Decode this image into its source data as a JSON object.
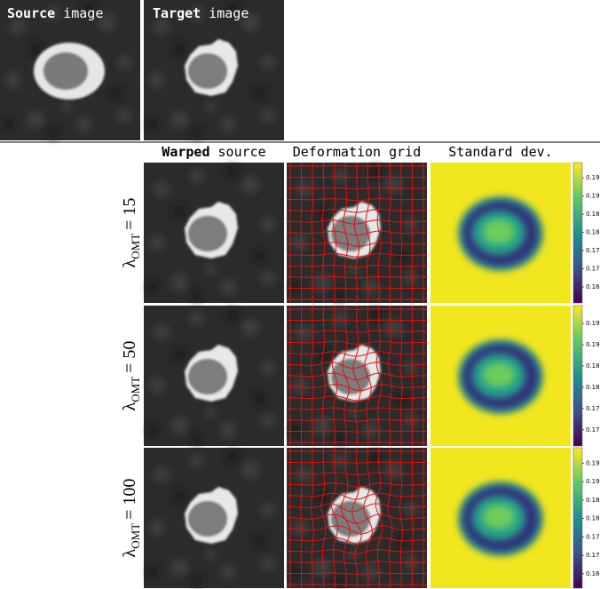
{
  "header": {
    "source": {
      "bold": "Source",
      "rest": "image"
    },
    "target": {
      "bold": "Target",
      "rest": "image"
    }
  },
  "columns": [
    {
      "bold": "Warped",
      "rest": "source"
    },
    {
      "text": "Deformation grid"
    },
    {
      "text": "Standard dev."
    }
  ],
  "rows": [
    {
      "symbol": "λ",
      "subscript": "OMT",
      "value": "= 15",
      "colorbar": {
        "ylim": [
          0.1606,
          0.1992
        ],
        "ticks": [
          {
            "value": 0.195,
            "label": "0.195"
          },
          {
            "value": 0.19,
            "label": "0.190"
          },
          {
            "value": 0.185,
            "label": "0.185"
          },
          {
            "value": 0.18,
            "label": "0.180"
          },
          {
            "value": 0.175,
            "label": "0.175"
          },
          {
            "value": 0.17,
            "label": "0.170"
          },
          {
            "value": 0.165,
            "label": "0.165"
          }
        ]
      }
    },
    {
      "symbol": "λ",
      "subscript": "OMT",
      "value": "= 50",
      "colorbar": {
        "ylim": [
          0.1662,
          0.1992
        ],
        "ticks": [
          {
            "value": 0.195,
            "label": "0.195"
          },
          {
            "value": 0.19,
            "label": "0.190"
          },
          {
            "value": 0.185,
            "label": "0.185"
          },
          {
            "value": 0.18,
            "label": "0.180"
          },
          {
            "value": 0.175,
            "label": "0.175"
          },
          {
            "value": 0.17,
            "label": "0.170"
          }
        ]
      }
    },
    {
      "symbol": "λ",
      "subscript": "OMT",
      "value": "= 100",
      "colorbar": {
        "ylim": [
          0.1611,
          0.1992
        ],
        "ticks": [
          {
            "value": 0.195,
            "label": "0.195"
          },
          {
            "value": 0.19,
            "label": "0.190"
          },
          {
            "value": 0.185,
            "label": "0.185"
          },
          {
            "value": 0.18,
            "label": "0.180"
          },
          {
            "value": 0.175,
            "label": "0.175"
          },
          {
            "value": 0.17,
            "label": "0.170"
          },
          {
            "value": 0.165,
            "label": "0.165"
          }
        ]
      }
    }
  ]
}
